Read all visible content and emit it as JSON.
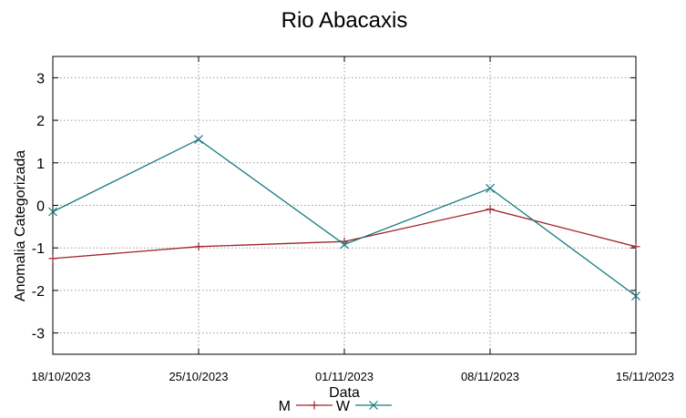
{
  "chart_data": {
    "type": "line",
    "title": "Rio Abacaxis",
    "xlabel": "Data",
    "ylabel": "Anomalia Categorizada",
    "categories": [
      "18/10/2023",
      "25/10/2023",
      "01/11/2023",
      "08/11/2023",
      "15/11/2023"
    ],
    "yticks": [
      3,
      2,
      1,
      0,
      -1,
      -2,
      -3
    ],
    "ylim": [
      -3.5,
      3.5
    ],
    "grid": true,
    "legend_position": "bottom-center",
    "series": [
      {
        "name": "M",
        "color": "#a0252b",
        "marker": "plus",
        "values": [
          -1.25,
          -0.97,
          -0.85,
          -0.09,
          -0.97
        ]
      },
      {
        "name": "W",
        "color": "#167b7f",
        "marker": "cross",
        "values": [
          -0.15,
          1.55,
          -0.92,
          0.4,
          -2.13
        ]
      }
    ]
  }
}
